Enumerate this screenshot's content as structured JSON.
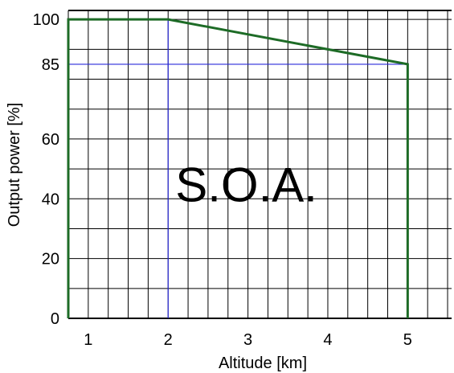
{
  "chart_data": {
    "type": "line",
    "title": "",
    "xlabel": "Altitude [km]",
    "ylabel": "Output power [%]",
    "xlim": [
      0.75,
      5.55
    ],
    "ylim": [
      0,
      103
    ],
    "x_ticks": [
      1,
      2,
      3,
      4,
      5
    ],
    "y_ticks": [
      0,
      20,
      40,
      60,
      85,
      100
    ],
    "grid": true,
    "series": [
      {
        "color": "#1d6b26",
        "x": [
          0.75,
          0.75,
          2,
          5,
          5
        ],
        "y": [
          0,
          100,
          100,
          85,
          0
        ]
      }
    ],
    "reference_lines": [
      {
        "color": "#2a2adb",
        "x": [
          0.75,
          5
        ],
        "y": [
          85,
          85
        ]
      },
      {
        "color": "#2a2adb",
        "x": [
          2,
          2
        ],
        "y": [
          0,
          100
        ]
      }
    ],
    "annotations": [
      {
        "text": "S.O.A.",
        "x": 3.0,
        "y": 45
      }
    ],
    "colors": {
      "grid": "#000000",
      "area_line": "#1d6b26",
      "reference": "#2a2adb"
    }
  }
}
